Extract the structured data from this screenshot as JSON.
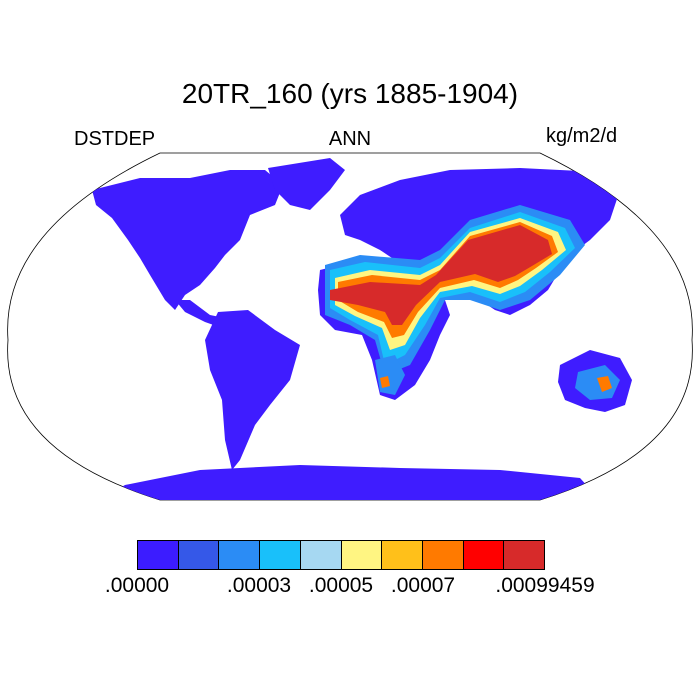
{
  "title": "20TR_160 (yrs 1885-1904)",
  "left_string": "DSTDEP",
  "center_string": "ANN",
  "right_string": "kg/m2/d",
  "projection": "Robinson",
  "colors": {
    "background_land": "#3f1cff",
    "ocean": "#ffffff",
    "coast": "#000000"
  },
  "colorbar": {
    "colors": [
      "#3c1cff",
      "#3558e8",
      "#2b8cf5",
      "#19c0fa",
      "#a6d8f2",
      "#fff582",
      "#ffc01a",
      "#ff7a00",
      "#ff0000",
      "#d72a2a"
    ],
    "labels": [
      ".00000",
      ".00003",
      ".00005",
      ".00007",
      ".00099459"
    ],
    "label_positions_boundary_index": [
      0,
      2,
      4,
      6,
      10
    ]
  },
  "chart_data": {
    "type": "heatmap",
    "title": "20TR_160 (yrs 1885-1904)",
    "variable": "DSTDEP",
    "period": "ANN",
    "units": "kg/m2/d",
    "levels": [
      0.0,
      3e-05,
      5e-05,
      7e-05,
      0.00099459
    ],
    "high_regions": [
      "Sahara",
      "Arabian Peninsula",
      "Central Asia",
      "Central Australia"
    ]
  }
}
